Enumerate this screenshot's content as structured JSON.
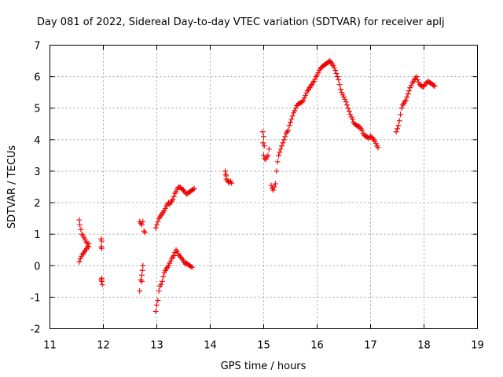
{
  "chart_data": {
    "type": "scatter",
    "title": "Day 081 of 2022, Sidereal Day-to-day VTEC variation (SDTVAR) for receiver aplj",
    "xlabel": "GPS time / hours",
    "ylabel": "SDTVAR / TECUs",
    "xlim": [
      11,
      19
    ],
    "ylim": [
      -2,
      7
    ],
    "xticks": [
      "11",
      "12",
      "13",
      "14",
      "15",
      "16",
      "17",
      "18",
      "19"
    ],
    "yticks": [
      "-2",
      "-1",
      "0",
      "1",
      "2",
      "3",
      "4",
      "5",
      "6",
      "7"
    ],
    "grid": true,
    "marker": "+",
    "series_color": "#ee0000",
    "series": [
      {
        "name": "SDTVAR",
        "segments": [
          [
            [
              11.55,
              1.45
            ],
            [
              11.56,
              1.3
            ],
            [
              11.58,
              1.15
            ],
            [
              11.6,
              1.0
            ],
            [
              11.62,
              0.95
            ],
            [
              11.64,
              0.88
            ],
            [
              11.66,
              0.82
            ],
            [
              11.68,
              0.75
            ],
            [
              11.7,
              0.7
            ],
            [
              11.72,
              0.6
            ]
          ],
          [
            [
              11.55,
              0.12
            ],
            [
              11.57,
              0.22
            ],
            [
              11.59,
              0.3
            ],
            [
              11.61,
              0.36
            ],
            [
              11.63,
              0.4
            ],
            [
              11.65,
              0.45
            ],
            [
              11.67,
              0.5
            ],
            [
              11.69,
              0.55
            ],
            [
              11.71,
              0.62
            ],
            [
              11.73,
              0.7
            ]
          ],
          [
            [
              11.96,
              0.85
            ],
            [
              11.97,
              0.78
            ],
            [
              11.96,
              0.6
            ],
            [
              11.97,
              0.55
            ]
          ],
          [
            [
              11.96,
              -0.45
            ],
            [
              11.97,
              -0.5
            ],
            [
              11.98,
              -0.6
            ],
            [
              11.97,
              -0.4
            ]
          ],
          [
            [
              12.68,
              -0.8
            ],
            [
              12.7,
              -0.45
            ],
            [
              12.72,
              -0.3
            ],
            [
              12.73,
              -0.15
            ],
            [
              12.74,
              0.0
            ],
            [
              12.72,
              -0.5
            ]
          ],
          [
            [
              12.68,
              1.4
            ],
            [
              12.7,
              1.35
            ],
            [
              12.72,
              1.3
            ],
            [
              12.74,
              1.4
            ],
            [
              12.76,
              1.1
            ],
            [
              12.78,
              1.05
            ]
          ],
          [
            [
              12.98,
              -1.45
            ],
            [
              13.0,
              -1.25
            ],
            [
              13.02,
              -1.1
            ],
            [
              13.04,
              -0.8
            ],
            [
              13.06,
              -0.65
            ],
            [
              13.08,
              -0.6
            ],
            [
              13.1,
              -0.5
            ],
            [
              13.12,
              -0.35
            ],
            [
              13.14,
              -0.22
            ],
            [
              13.16,
              -0.15
            ],
            [
              13.18,
              -0.1
            ],
            [
              13.2,
              -0.05
            ],
            [
              13.22,
              0.0
            ],
            [
              13.24,
              0.08
            ],
            [
              13.26,
              0.15
            ],
            [
              13.28,
              0.22
            ],
            [
              13.3,
              0.28
            ],
            [
              13.32,
              0.32
            ],
            [
              13.34,
              0.42
            ],
            [
              13.36,
              0.5
            ],
            [
              13.38,
              0.45
            ],
            [
              13.4,
              0.38
            ],
            [
              13.42,
              0.32
            ],
            [
              13.44,
              0.28
            ],
            [
              13.46,
              0.25
            ],
            [
              13.48,
              0.2
            ],
            [
              13.5,
              0.15
            ],
            [
              13.52,
              0.1
            ],
            [
              13.54,
              0.05
            ],
            [
              13.56,
              0.08
            ],
            [
              13.58,
              0.05
            ],
            [
              13.6,
              0.02
            ],
            [
              13.62,
              0.0
            ],
            [
              13.64,
              -0.03
            ],
            [
              13.66,
              -0.05
            ]
          ],
          [
            [
              12.98,
              1.2
            ],
            [
              13.0,
              1.3
            ],
            [
              13.02,
              1.4
            ],
            [
              13.04,
              1.5
            ],
            [
              13.06,
              1.55
            ],
            [
              13.08,
              1.6
            ],
            [
              13.1,
              1.65
            ],
            [
              13.12,
              1.7
            ],
            [
              13.14,
              1.75
            ],
            [
              13.16,
              1.82
            ],
            [
              13.18,
              1.9
            ],
            [
              13.2,
              1.95
            ],
            [
              13.22,
              2.0
            ],
            [
              13.24,
              1.95
            ],
            [
              13.26,
              2.0
            ],
            [
              13.28,
              2.05
            ],
            [
              13.3,
              2.1
            ],
            [
              13.32,
              2.2
            ],
            [
              13.34,
              2.3
            ],
            [
              13.36,
              2.35
            ],
            [
              13.38,
              2.42
            ],
            [
              13.4,
              2.48
            ],
            [
              13.42,
              2.5
            ],
            [
              13.44,
              2.48
            ],
            [
              13.46,
              2.45
            ],
            [
              13.48,
              2.42
            ],
            [
              13.5,
              2.4
            ],
            [
              13.52,
              2.35
            ],
            [
              13.54,
              2.3
            ],
            [
              13.56,
              2.28
            ],
            [
              13.58,
              2.3
            ],
            [
              13.6,
              2.32
            ],
            [
              13.62,
              2.35
            ],
            [
              13.64,
              2.38
            ],
            [
              13.66,
              2.4
            ],
            [
              13.68,
              2.42
            ],
            [
              13.7,
              2.45
            ]
          ],
          [
            [
              14.28,
              3.0
            ],
            [
              14.29,
              2.9
            ],
            [
              14.3,
              2.75
            ],
            [
              14.32,
              2.7
            ],
            [
              14.34,
              2.65
            ],
            [
              14.36,
              2.65
            ],
            [
              14.38,
              2.68
            ],
            [
              14.4,
              2.62
            ],
            [
              14.3,
              2.85
            ]
          ],
          [
            [
              14.98,
              4.25
            ],
            [
              15.0,
              4.1
            ],
            [
              14.99,
              3.9
            ],
            [
              15.01,
              3.8
            ]
          ],
          [
            [
              15.0,
              3.5
            ],
            [
              15.02,
              3.4
            ],
            [
              15.04,
              3.38
            ],
            [
              15.06,
              3.45
            ],
            [
              15.08,
              3.5
            ],
            [
              15.1,
              3.7
            ]
          ],
          [
            [
              15.14,
              2.55
            ],
            [
              15.16,
              2.45
            ],
            [
              15.18,
              2.4
            ],
            [
              15.2,
              2.5
            ],
            [
              15.22,
              2.6
            ],
            [
              15.24,
              3.0
            ],
            [
              15.26,
              3.3
            ],
            [
              15.28,
              3.5
            ],
            [
              15.3,
              3.6
            ],
            [
              15.32,
              3.7
            ],
            [
              15.34,
              3.8
            ],
            [
              15.36,
              3.9
            ],
            [
              15.38,
              4.0
            ],
            [
              15.4,
              4.1
            ],
            [
              15.42,
              4.2
            ],
            [
              15.44,
              4.25
            ],
            [
              15.46,
              4.3
            ],
            [
              15.48,
              4.45
            ],
            [
              15.5,
              4.55
            ],
            [
              15.52,
              4.65
            ],
            [
              15.54,
              4.75
            ],
            [
              15.56,
              4.85
            ],
            [
              15.58,
              4.92
            ],
            [
              15.6,
              5.0
            ],
            [
              15.62,
              5.08
            ],
            [
              15.64,
              5.12
            ],
            [
              15.66,
              5.15
            ],
            [
              15.68,
              5.16
            ],
            [
              15.7,
              5.18
            ],
            [
              15.72,
              5.2
            ],
            [
              15.74,
              5.25
            ],
            [
              15.76,
              5.32
            ],
            [
              15.78,
              5.4
            ],
            [
              15.8,
              5.48
            ],
            [
              15.82,
              5.55
            ],
            [
              15.84,
              5.6
            ],
            [
              15.86,
              5.65
            ],
            [
              15.88,
              5.7
            ],
            [
              15.9,
              5.75
            ],
            [
              15.92,
              5.8
            ],
            [
              15.94,
              5.85
            ],
            [
              15.96,
              5.92
            ],
            [
              15.98,
              6.0
            ],
            [
              16.0,
              6.05
            ],
            [
              16.02,
              6.12
            ],
            [
              16.04,
              6.2
            ],
            [
              16.06,
              6.25
            ],
            [
              16.08,
              6.3
            ],
            [
              16.1,
              6.32
            ],
            [
              16.12,
              6.35
            ],
            [
              16.14,
              6.38
            ],
            [
              16.16,
              6.4
            ],
            [
              16.18,
              6.42
            ],
            [
              16.2,
              6.45
            ],
            [
              16.22,
              6.48
            ],
            [
              16.24,
              6.5
            ],
            [
              16.26,
              6.45
            ],
            [
              16.28,
              6.4
            ],
            [
              16.3,
              6.35
            ],
            [
              16.32,
              6.28
            ],
            [
              16.34,
              6.2
            ],
            [
              16.36,
              6.1
            ],
            [
              16.38,
              6.0
            ],
            [
              16.4,
              5.9
            ],
            [
              16.42,
              5.75
            ],
            [
              16.44,
              5.6
            ],
            [
              16.46,
              5.5
            ],
            [
              16.48,
              5.42
            ],
            [
              16.5,
              5.35
            ],
            [
              16.52,
              5.28
            ],
            [
              16.54,
              5.2
            ],
            [
              16.56,
              5.1
            ],
            [
              16.58,
              5.0
            ],
            [
              16.6,
              4.9
            ],
            [
              16.62,
              4.8
            ],
            [
              16.64,
              4.72
            ],
            [
              16.66,
              4.65
            ],
            [
              16.68,
              4.55
            ],
            [
              16.7,
              4.5
            ],
            [
              16.72,
              4.48
            ],
            [
              16.74,
              4.45
            ],
            [
              16.76,
              4.42
            ],
            [
              16.78,
              4.42
            ],
            [
              16.8,
              4.4
            ],
            [
              16.82,
              4.35
            ],
            [
              16.84,
              4.3
            ],
            [
              16.86,
              4.2
            ],
            [
              16.88,
              4.15
            ],
            [
              16.9,
              4.12
            ],
            [
              16.92,
              4.1
            ],
            [
              16.94,
              4.08
            ],
            [
              16.96,
              4.05
            ],
            [
              16.98,
              4.08
            ],
            [
              17.0,
              4.1
            ],
            [
              17.02,
              4.08
            ],
            [
              17.04,
              4.05
            ],
            [
              17.06,
              4.0
            ],
            [
              17.08,
              3.95
            ],
            [
              17.1,
              3.88
            ],
            [
              17.12,
              3.8
            ],
            [
              17.14,
              3.75
            ]
          ],
          [
            [
              17.48,
              4.25
            ],
            [
              17.5,
              4.35
            ],
            [
              17.52,
              4.45
            ],
            [
              17.54,
              4.6
            ],
            [
              17.56,
              4.8
            ],
            [
              17.58,
              5.0
            ],
            [
              17.6,
              5.1
            ],
            [
              17.62,
              5.15
            ],
            [
              17.64,
              5.2
            ],
            [
              17.66,
              5.25
            ],
            [
              17.68,
              5.35
            ],
            [
              17.7,
              5.45
            ],
            [
              17.72,
              5.55
            ],
            [
              17.74,
              5.65
            ],
            [
              17.76,
              5.72
            ],
            [
              17.78,
              5.8
            ],
            [
              17.8,
              5.85
            ],
            [
              17.82,
              5.9
            ],
            [
              17.84,
              5.95
            ],
            [
              17.86,
              6.0
            ],
            [
              17.88,
              5.9
            ],
            [
              17.9,
              5.82
            ],
            [
              17.92,
              5.75
            ],
            [
              17.94,
              5.72
            ],
            [
              17.96,
              5.7
            ],
            [
              17.98,
              5.68
            ],
            [
              18.0,
              5.7
            ],
            [
              18.02,
              5.75
            ],
            [
              18.04,
              5.8
            ],
            [
              18.06,
              5.82
            ],
            [
              18.08,
              5.85
            ],
            [
              18.1,
              5.82
            ],
            [
              18.12,
              5.8
            ],
            [
              18.14,
              5.78
            ],
            [
              18.16,
              5.75
            ],
            [
              18.18,
              5.72
            ],
            [
              18.2,
              5.7
            ]
          ]
        ]
      }
    ]
  }
}
